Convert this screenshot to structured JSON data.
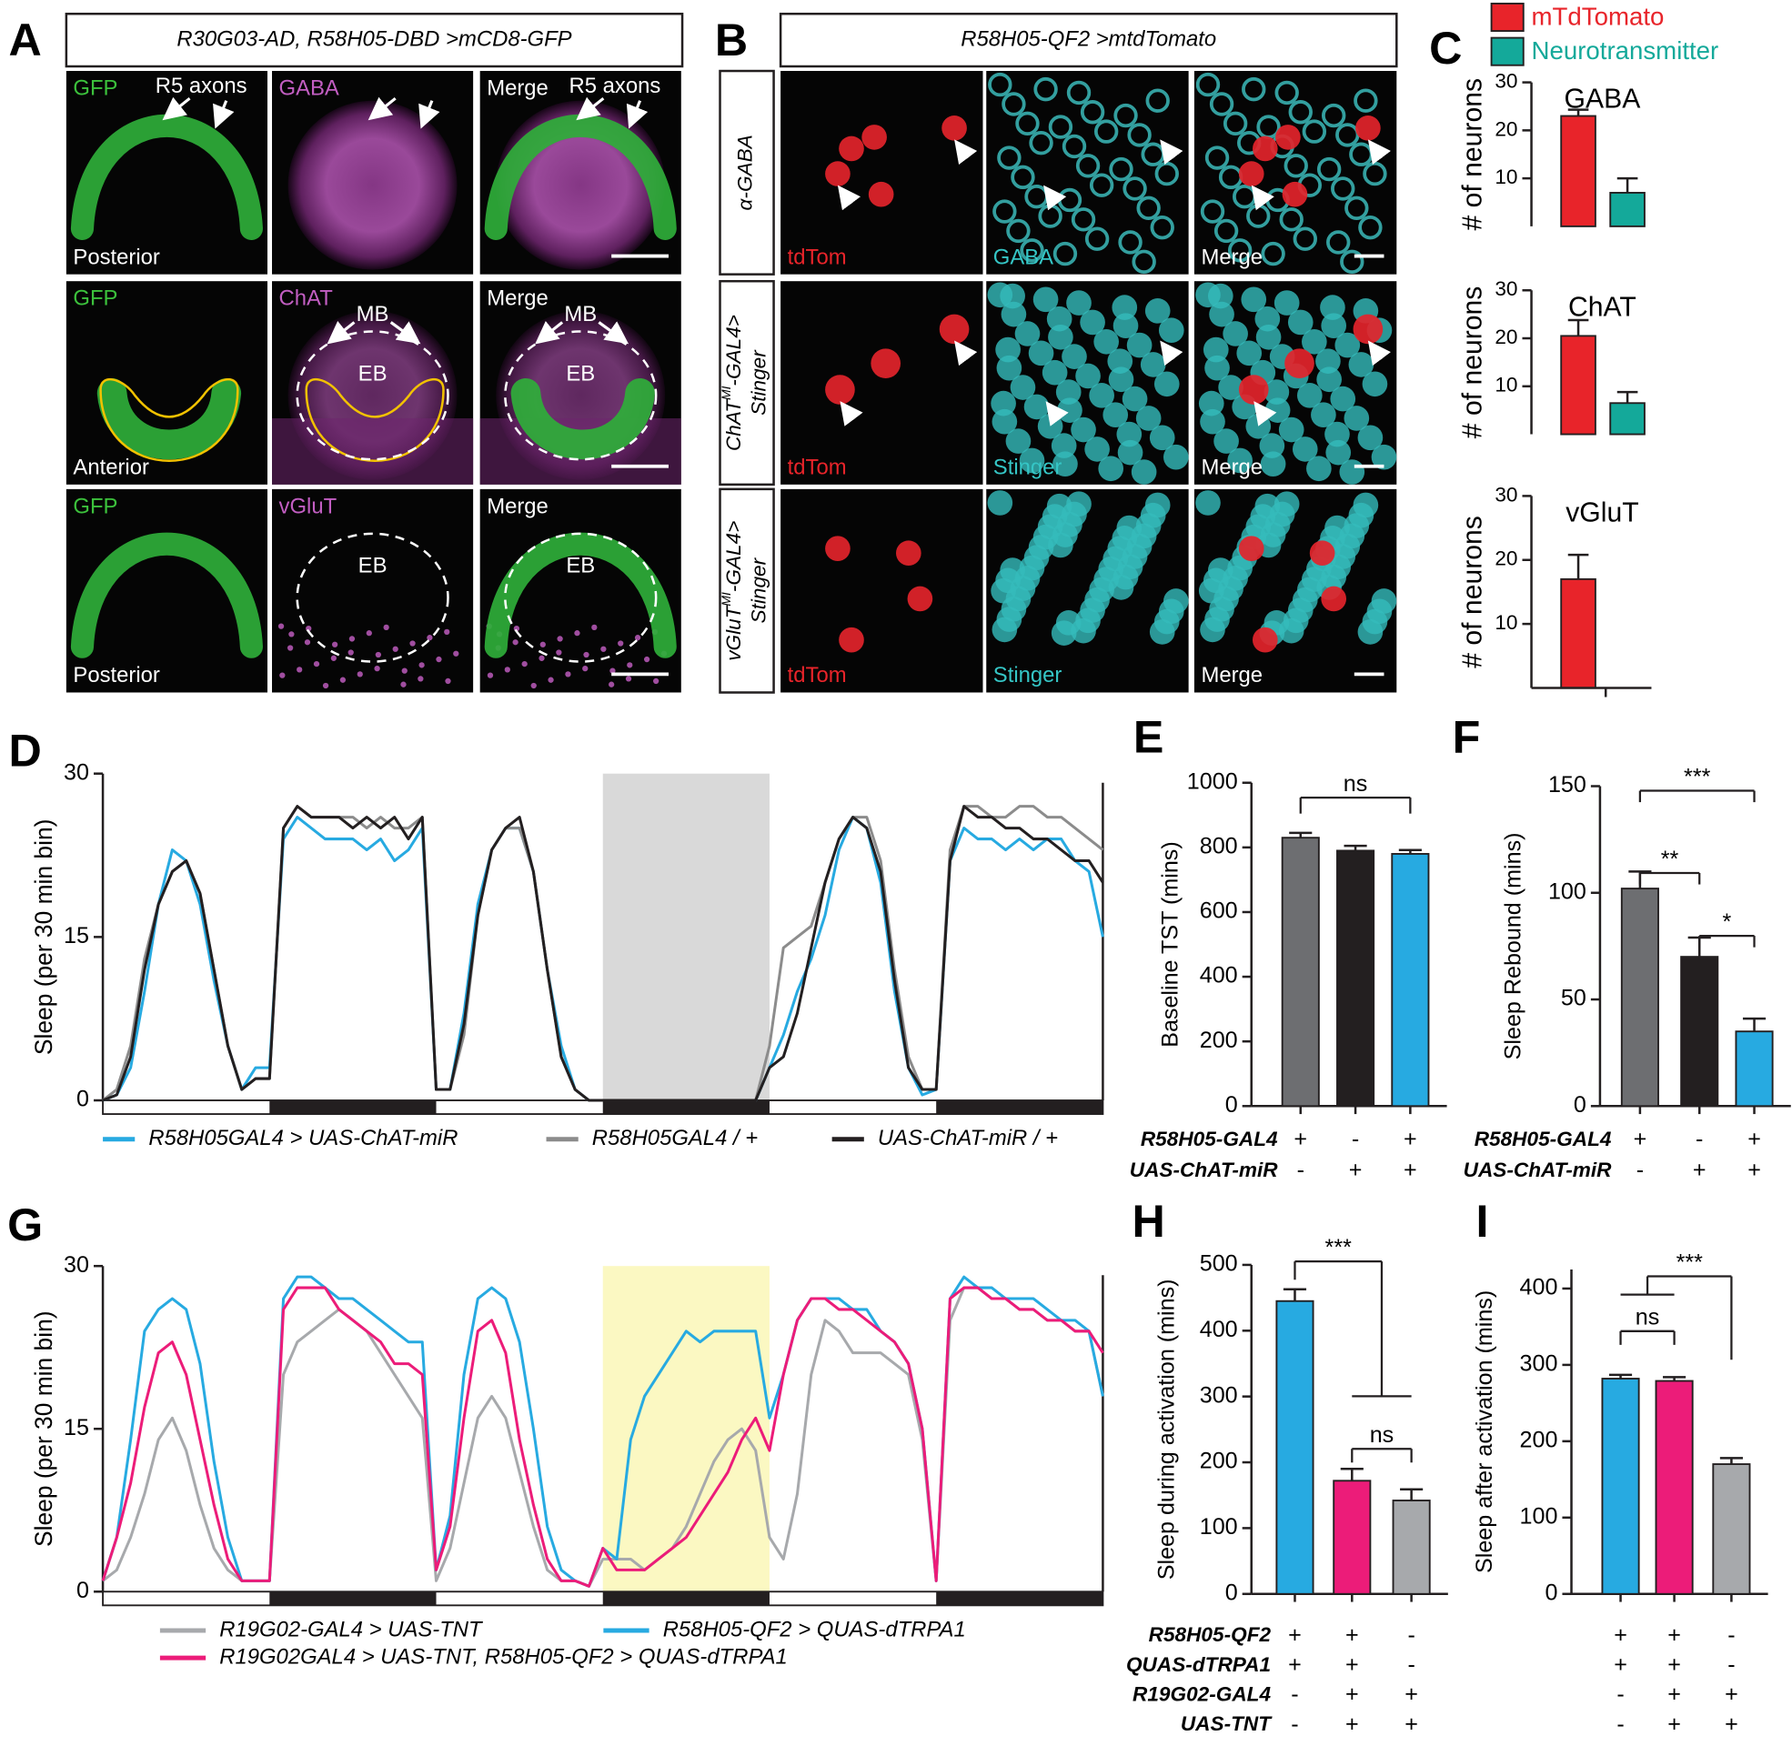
{
  "image_panels": {
    "A": {
      "letter": "A",
      "header": "R30G03-AD, R58H05-DBD >mCD8-GFP",
      "rows": [
        {
          "channels": [
            "GFP",
            "GABA",
            "Merge"
          ],
          "orientation": "Posterior",
          "notes": [
            [
              "R5 axons"
            ],
            [],
            [
              "R5 axons"
            ]
          ]
        },
        {
          "channels": [
            "GFP",
            "ChAT",
            "Merge"
          ],
          "orientation": "Anterior",
          "notes": [
            [],
            [
              "MB",
              "EB"
            ],
            [
              "MB",
              "EB"
            ]
          ]
        },
        {
          "channels": [
            "GFP",
            "vGluT",
            "Merge"
          ],
          "orientation": "Posterior",
          "notes": [
            [],
            [
              "EB"
            ],
            [
              "EB"
            ]
          ]
        }
      ]
    },
    "B": {
      "letter": "B",
      "header": "R58H05-QF2 >mtdTomato",
      "rows": [
        {
          "label": {
            "main": "α-GABA"
          },
          "channels": [
            "tdTom",
            "GABA",
            "Merge"
          ]
        },
        {
          "label": {
            "main": "ChAT",
            "sup": "MI",
            "rest": "-GAL4>",
            "line2": "Stinger"
          },
          "channels": [
            "tdTom",
            "Stinger",
            "Merge"
          ]
        },
        {
          "label": {
            "main": "vGluT",
            "sup": "MI",
            "rest": "-GAL4>",
            "line2": "Stinger"
          },
          "channels": [
            "tdTom",
            "Stinger",
            "Merge"
          ]
        }
      ]
    }
  },
  "chart_data": [
    {
      "type": "bar",
      "panel": "C",
      "facets": true,
      "categories": [
        "GABA",
        "ChAT",
        "vGluT"
      ],
      "series": [
        {
          "name": "mTdTomato",
          "color": "#e8242a",
          "values": [
            23,
            20.5,
            17
          ],
          "errors": [
            1.3,
            3.3,
            3.8
          ]
        },
        {
          "name": "Neurotransmitter",
          "color": "#14a99a",
          "values": [
            7,
            6.5,
            null
          ],
          "errors": [
            3,
            2.3,
            null
          ]
        }
      ],
      "y_label": "# of neurons",
      "ylim": [
        0,
        30
      ],
      "yticks": [
        10,
        20,
        30
      ],
      "legend": "top"
    },
    {
      "type": "line",
      "panel": "D",
      "y_label": "Sleep (per 30 min bin)",
      "x": [
        0,
        1,
        2,
        3,
        4,
        5,
        6,
        7,
        8,
        9,
        10,
        11,
        12,
        13,
        14,
        15,
        16,
        17,
        18,
        19,
        20,
        21,
        22,
        23,
        24,
        25,
        26,
        27,
        28,
        29,
        30,
        31,
        32,
        33,
        34,
        35,
        36,
        37,
        38,
        39,
        40,
        41,
        42,
        43,
        44,
        45,
        46,
        47,
        48,
        49,
        50,
        51,
        52,
        53,
        54,
        55,
        56,
        57,
        58,
        59,
        60,
        61,
        62,
        63,
        64,
        65,
        66,
        67,
        68,
        69,
        70,
        71,
        72
      ],
      "xlim": [
        0,
        72
      ],
      "ylim": [
        0,
        30
      ],
      "yticks": [
        0,
        15,
        30
      ],
      "dark_phases": [
        [
          12,
          24
        ],
        [
          36,
          48
        ],
        [
          60,
          72
        ]
      ],
      "highlight": {
        "xlim": [
          36,
          48
        ],
        "color": "#d9d9d9"
      },
      "series": [
        {
          "name": "R58H05GAL4 > UAS-ChAT-miR",
          "color": "#27aae1",
          "values": [
            0,
            0.5,
            3,
            10,
            18,
            23,
            22,
            18,
            11,
            5,
            1,
            3,
            3,
            24,
            26,
            25,
            24,
            24,
            24,
            23,
            24,
            22,
            23,
            25,
            1,
            1,
            8,
            18,
            23,
            25,
            25,
            21,
            12,
            5,
            1,
            0,
            0,
            0,
            0,
            0,
            0,
            0,
            0,
            0,
            0,
            0,
            0,
            0,
            3,
            6,
            10,
            13,
            17,
            23,
            26,
            25,
            20,
            10,
            3,
            0.5,
            1,
            22,
            25,
            24,
            24,
            23,
            24,
            23,
            24,
            24,
            22,
            21,
            15
          ]
        },
        {
          "name": "R58H05GAL4 / +",
          "color": "#8c8c8c",
          "values": [
            0,
            1,
            5,
            13,
            18,
            21,
            22,
            19,
            12,
            5,
            1,
            2,
            2,
            25,
            27,
            26,
            26,
            26,
            26,
            25,
            26,
            25,
            25,
            26,
            1,
            1,
            6,
            17,
            23,
            25,
            25,
            21,
            12,
            4,
            1,
            0,
            0,
            0,
            0,
            0,
            0,
            0,
            0,
            0,
            0,
            0,
            0,
            0,
            5,
            14,
            15,
            16,
            20,
            24,
            26,
            26,
            22,
            12,
            4,
            1,
            1,
            23,
            27,
            27,
            26,
            26,
            27,
            27,
            26,
            26,
            25,
            24,
            23
          ]
        },
        {
          "name": "UAS-ChAT-miR / +",
          "color": "#231f20",
          "values": [
            0,
            0.5,
            4,
            12,
            18,
            21,
            22,
            19,
            12,
            5,
            1,
            2,
            2,
            25,
            27,
            26,
            26,
            26,
            25,
            26,
            25,
            26,
            24,
            26,
            1,
            1,
            7,
            17,
            23,
            25,
            26,
            21,
            12,
            4,
            1,
            0,
            0,
            0,
            0,
            0,
            0,
            0,
            0,
            0,
            0,
            0,
            0,
            0,
            3,
            4,
            8,
            14,
            20,
            24,
            26,
            25,
            21,
            11,
            3,
            1,
            1,
            22,
            27,
            26,
            26,
            25,
            25,
            24,
            24,
            23,
            22,
            22,
            20
          ]
        }
      ]
    },
    {
      "type": "bar",
      "panel": "E",
      "y_label": "Baseline TST  (mins)",
      "ylim": [
        0,
        1000
      ],
      "yticks": [
        0,
        200,
        400,
        600,
        800,
        1000
      ],
      "values": [
        830,
        790,
        780
      ],
      "errors": [
        15,
        15,
        12
      ],
      "colors": [
        "#6d6e71",
        "#231f20",
        "#27aae1"
      ],
      "genotypes": [
        {
          "label": "R58H05-GAL4",
          "marks": [
            "+",
            "-",
            "+"
          ]
        },
        {
          "label": "UAS-ChAT-miR",
          "marks": [
            "-",
            "+",
            "+"
          ]
        }
      ],
      "significance": [
        {
          "label": "ns",
          "from": 0,
          "to": 2
        }
      ]
    },
    {
      "type": "bar",
      "panel": "F",
      "y_label": "Sleep Rebound (mins)",
      "ylim": [
        0,
        150
      ],
      "yticks": [
        0,
        50,
        100,
        150
      ],
      "values": [
        102,
        70,
        35
      ],
      "errors": [
        8,
        9,
        6
      ],
      "colors": [
        "#6d6e71",
        "#231f20",
        "#27aae1"
      ],
      "genotypes": [
        {
          "label": "R58H05-GAL4",
          "marks": [
            "+",
            "-",
            "+"
          ]
        },
        {
          "label": "UAS-ChAT-miR",
          "marks": [
            "-",
            "+",
            "+"
          ]
        }
      ],
      "significance": [
        {
          "label": "***",
          "from": 0,
          "to": 2
        },
        {
          "label": "**",
          "from": 0,
          "to": 1
        },
        {
          "label": "*",
          "from": 1,
          "to": 2
        }
      ]
    },
    {
      "type": "line",
      "panel": "G",
      "y_label": "Sleep (per 30 min bin)",
      "x": [
        0,
        1,
        2,
        3,
        4,
        5,
        6,
        7,
        8,
        9,
        10,
        11,
        12,
        13,
        14,
        15,
        16,
        17,
        18,
        19,
        20,
        21,
        22,
        23,
        24,
        25,
        26,
        27,
        28,
        29,
        30,
        31,
        32,
        33,
        34,
        35,
        36,
        37,
        38,
        39,
        40,
        41,
        42,
        43,
        44,
        45,
        46,
        47,
        48,
        49,
        50,
        51,
        52,
        53,
        54,
        55,
        56,
        57,
        58,
        59,
        60,
        61,
        62,
        63,
        64,
        65,
        66,
        67,
        68,
        69,
        70,
        71,
        72
      ],
      "xlim": [
        0,
        72
      ],
      "ylim": [
        0,
        30
      ],
      "yticks": [
        0,
        15,
        30
      ],
      "dark_phases": [
        [
          12,
          24
        ],
        [
          36,
          48
        ],
        [
          60,
          72
        ]
      ],
      "highlight": {
        "xlim": [
          36,
          48
        ],
        "color": "#fbf8c2"
      },
      "series": [
        {
          "name": "R19G02-GAL4 > UAS-TNT",
          "color": "#a7a9ac",
          "values": [
            1,
            2,
            5,
            9,
            14,
            16,
            13,
            8,
            4,
            2,
            1,
            1,
            1,
            20,
            23,
            24,
            25,
            26,
            25,
            24,
            22,
            20,
            18,
            16,
            1,
            4,
            10,
            16,
            18,
            16,
            11,
            6,
            2,
            1,
            1,
            0.5,
            3,
            3,
            3,
            2,
            3,
            4,
            6,
            9,
            12,
            14,
            15,
            13,
            5,
            3,
            9,
            20,
            25,
            24,
            22,
            22,
            22,
            21,
            20,
            14,
            1,
            25,
            28,
            28,
            27,
            27,
            26,
            26,
            25,
            25,
            24,
            24,
            18
          ]
        },
        {
          "name": "R58H05-QF2 > QUAS-dTRPA1",
          "color": "#27aae1",
          "values": [
            1,
            5,
            14,
            24,
            26,
            27,
            26,
            21,
            12,
            5,
            1,
            1,
            1,
            27,
            29,
            29,
            28,
            27,
            27,
            26,
            25,
            24,
            23,
            23,
            2,
            7,
            20,
            27,
            28,
            27,
            23,
            15,
            6,
            2,
            1,
            0.5,
            4,
            3,
            14,
            18,
            20,
            22,
            24,
            23,
            24,
            24,
            24,
            24,
            16,
            20,
            25,
            27,
            27,
            27,
            26,
            26,
            24,
            23,
            21,
            15,
            1,
            27,
            29,
            28,
            28,
            27,
            27,
            27,
            26,
            25,
            25,
            24,
            18
          ]
        },
        {
          "name": "R19G02GAL4 > UAS-TNT, R58H05-QF2 > QUAS-dTRPA1",
          "color": "#ec1c79",
          "values": [
            1,
            5,
            10,
            17,
            22,
            23,
            20,
            14,
            8,
            3,
            1,
            1,
            1,
            26,
            28,
            28,
            28,
            26,
            25,
            24,
            23,
            21,
            21,
            20,
            2,
            6,
            16,
            24,
            25,
            22,
            14,
            8,
            3,
            1,
            1,
            0.5,
            4,
            2,
            2,
            2,
            3,
            4,
            5,
            7,
            9,
            11,
            14,
            16,
            13,
            20,
            25,
            27,
            27,
            26,
            26,
            25,
            24,
            23,
            21,
            15,
            1,
            27,
            28,
            28,
            27,
            27,
            26,
            26,
            25,
            25,
            24,
            24,
            22
          ]
        }
      ]
    },
    {
      "type": "bar",
      "panel": "H",
      "y_label": "Sleep during activation (mins)",
      "ylim": [
        0,
        500
      ],
      "yticks": [
        0,
        100,
        200,
        300,
        400,
        500
      ],
      "values": [
        445,
        172,
        142
      ],
      "errors": [
        18,
        18,
        17
      ],
      "colors": [
        "#27aae1",
        "#ec1c79",
        "#a7a9ac"
      ],
      "genotypes": [
        {
          "label": "R58H05-QF2",
          "marks": [
            "+",
            "+",
            "-"
          ]
        },
        {
          "label": "QUAS-dTRPA1",
          "marks": [
            "+",
            "+",
            "-"
          ]
        },
        {
          "label": "R19G02-GAL4",
          "marks": [
            "-",
            "+",
            "+"
          ]
        },
        {
          "label": "UAS-TNT",
          "marks": [
            "-",
            "+",
            "+"
          ]
        }
      ],
      "significance": [
        {
          "label": "***",
          "from": 0,
          "to": [
            1,
            2
          ]
        },
        {
          "label": "ns",
          "from": 1,
          "to": 2
        }
      ]
    },
    {
      "type": "bar",
      "panel": "I",
      "y_label": "Sleep after activation (mins)",
      "ylim": [
        0,
        425
      ],
      "yticks": [
        0,
        100,
        200,
        300,
        400
      ],
      "values": [
        282,
        279,
        170
      ],
      "errors": [
        5,
        5,
        8
      ],
      "colors": [
        "#27aae1",
        "#ec1c79",
        "#a7a9ac"
      ],
      "genotypes": [
        {
          "label": null,
          "marks": [
            "+",
            "+",
            "-"
          ]
        },
        {
          "label": null,
          "marks": [
            "+",
            "+",
            "-"
          ]
        },
        {
          "label": null,
          "marks": [
            "-",
            "+",
            "+"
          ]
        },
        {
          "label": null,
          "marks": [
            "-",
            "+",
            "+"
          ]
        }
      ],
      "significance": [
        {
          "label": "***",
          "from": [
            0,
            1
          ],
          "to": 2
        },
        {
          "label": "ns",
          "from": 0,
          "to": 1
        }
      ]
    }
  ]
}
